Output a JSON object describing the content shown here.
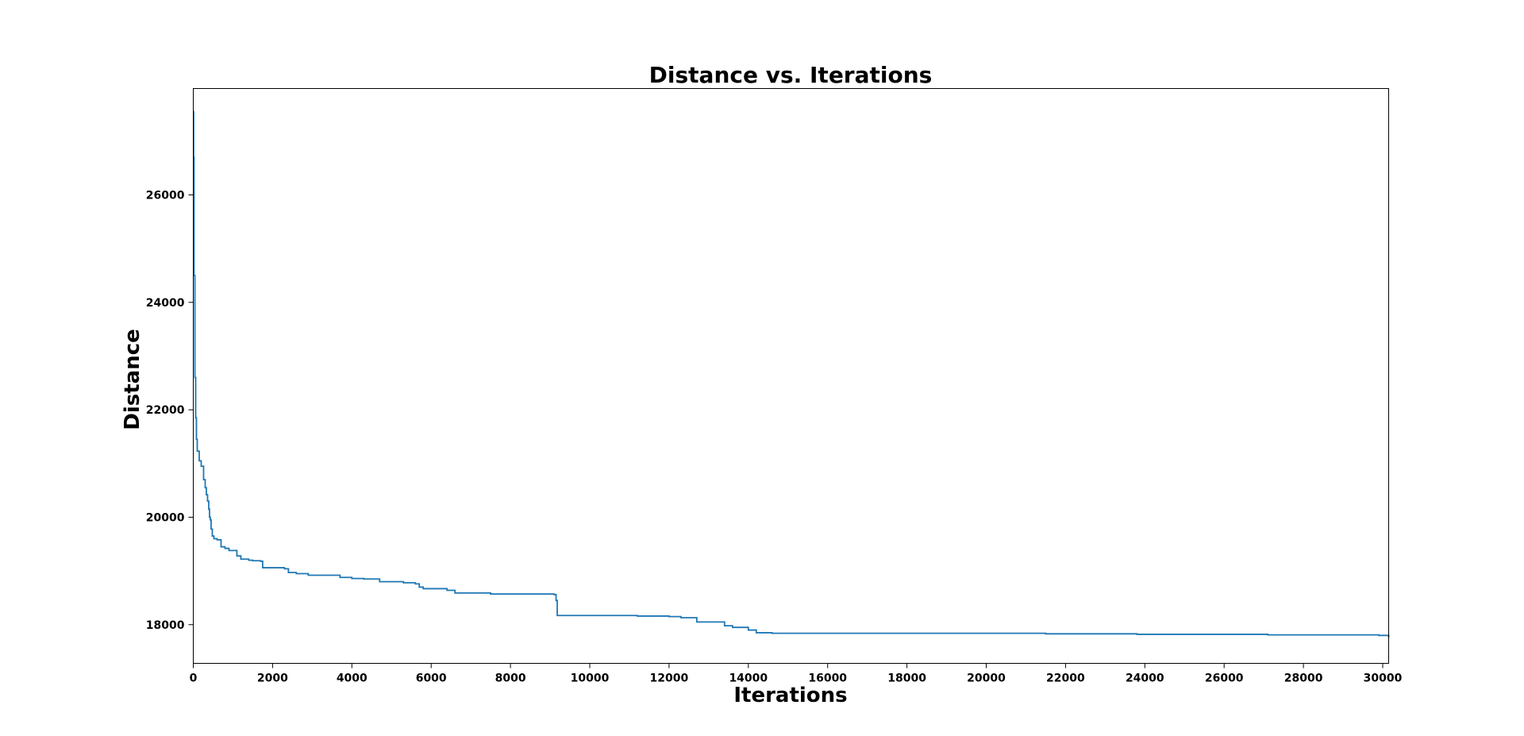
{
  "chart_data": {
    "type": "line",
    "title": "Distance vs. Iterations",
    "xlabel": "Iterations",
    "ylabel": "Distance",
    "xlim": [
      0,
      30150
    ],
    "ylim": [
      17280,
      27980
    ],
    "grid": false,
    "xticks": [
      0,
      2000,
      4000,
      6000,
      8000,
      10000,
      12000,
      14000,
      16000,
      18000,
      20000,
      22000,
      24000,
      26000,
      28000,
      30000
    ],
    "xtick_labels": [
      "0",
      "2000",
      "4000",
      "6000",
      "8000",
      "10000",
      "12000",
      "14000",
      "16000",
      "18000",
      "20000",
      "22000",
      "24000",
      "26000",
      "28000",
      "30000"
    ],
    "yticks": [
      18000,
      20000,
      22000,
      24000,
      26000
    ],
    "ytick_labels": [
      "18000",
      "20000",
      "22000",
      "24000",
      "26000"
    ],
    "series": [
      {
        "color": "#1f77b4",
        "step": true,
        "x": [
          0,
          10,
          20,
          40,
          60,
          80,
          100,
          150,
          200,
          260,
          300,
          330,
          360,
          390,
          410,
          430,
          450,
          480,
          520,
          600,
          700,
          800,
          900,
          1100,
          1200,
          1400,
          1500,
          1700,
          1750,
          2300,
          2400,
          2600,
          2900,
          3700,
          4000,
          4300,
          4700,
          5300,
          5600,
          5700,
          5800,
          6400,
          6600,
          7500,
          9100,
          9150,
          9180,
          11200,
          12000,
          12300,
          12700,
          13400,
          13600,
          14000,
          14200,
          14600,
          21500,
          23800,
          27100,
          29900,
          30150
        ],
        "y": [
          27550,
          26700,
          24500,
          22600,
          21850,
          21450,
          21230,
          21050,
          20950,
          20700,
          20550,
          20420,
          20300,
          20150,
          20000,
          19950,
          19780,
          19650,
          19600,
          19580,
          19450,
          19420,
          19380,
          19280,
          19220,
          19200,
          19190,
          19180,
          19060,
          19040,
          18970,
          18950,
          18920,
          18880,
          18860,
          18850,
          18800,
          18780,
          18760,
          18700,
          18670,
          18640,
          18590,
          18570,
          18560,
          18450,
          18170,
          18160,
          18150,
          18130,
          18050,
          17980,
          17950,
          17900,
          17850,
          17840,
          17830,
          17820,
          17810,
          17800,
          17760
        ]
      }
    ]
  }
}
